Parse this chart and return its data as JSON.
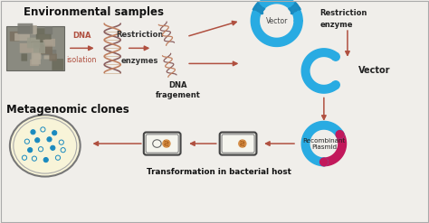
{
  "bg_color": "#f0eeea",
  "title_env": "Environmental samples",
  "title_meta": "Metagenomic clones",
  "label_dna_iso": "DNA\nisolation",
  "label_rest_enz": "Restriction\nenzymes",
  "label_dna_frag": "DNA\nfragement",
  "label_rest_enz2": "Restriction\nenzyme",
  "label_vector": "Vector",
  "label_rec_plasmid": "Recombinant\nPlasmid",
  "label_transform": "Transformation in bacterial host",
  "arrow_color": "#b05040",
  "dna_color1": "#8b6060",
  "dna_color2": "#c08060",
  "dna_link_color": "#d0b090",
  "circle_color": "#29abe2",
  "circle_dark": "#1a8abf",
  "plasmid_insert_color": "#c2185b",
  "cell_bg": "#f8f4d8",
  "colony_fill": "#1a8abf",
  "font_size_title": 8.5,
  "font_size_label": 6.0,
  "font_size_small": 5.2,
  "font_size_vector": 5.5
}
